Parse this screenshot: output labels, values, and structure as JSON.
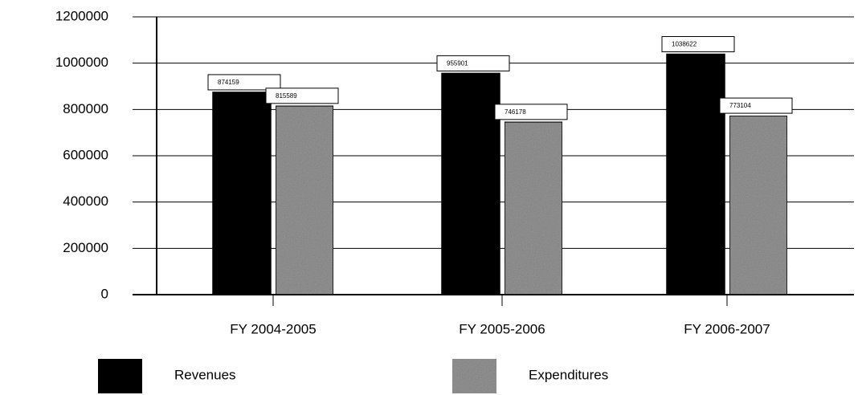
{
  "chart_data": {
    "type": "bar",
    "categories": [
      "FY 2004-2005",
      "FY 2005-2006",
      "FY 2006-2007"
    ],
    "series": [
      {
        "name": "Revenues",
        "color": "#000000",
        "values": [
          874159,
          955901,
          1038622
        ]
      },
      {
        "name": "Expenditures",
        "color": "#9c9c9c",
        "values": [
          815589,
          746178,
          773104
        ]
      }
    ],
    "ylim": [
      0,
      1200000
    ],
    "yticks": [
      0,
      200000,
      400000,
      600000,
      800000,
      1000000,
      1200000
    ],
    "grid": true,
    "legend": "bottom"
  }
}
